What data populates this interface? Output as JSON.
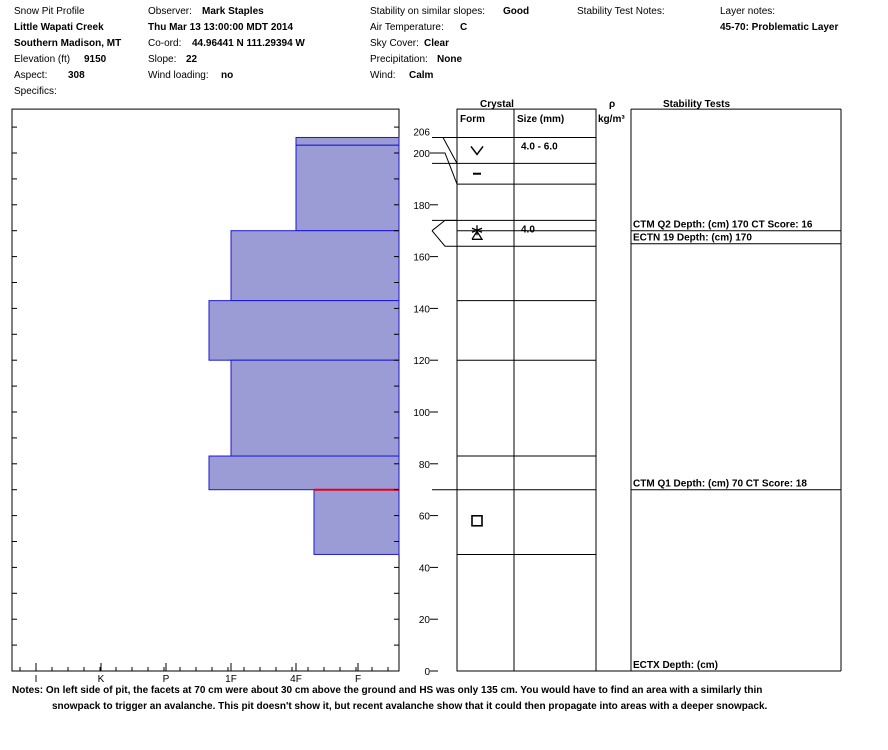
{
  "header": {
    "title": "Snow Pit Profile",
    "location1": "Little Wapati Creek",
    "location2": "Southern Madison, MT",
    "elevation_label": "Elevation (ft)",
    "elevation_value": "9150",
    "aspect_label": "Aspect:",
    "aspect_value": "308",
    "specifics_label": "Specifics:",
    "observer_label": "Observer:",
    "observer_value": "Mark Staples",
    "datetime": "Thu Mar 13 13:00:00 MDT 2014",
    "coord_label": "Co-ord:",
    "coord_value": "44.96441 N 111.29394 W",
    "slope_label": "Slope:",
    "slope_value": "22",
    "wind_loading_label": "Wind loading:",
    "wind_loading_value": "no",
    "stability_label": "Stability on similar slopes:",
    "stability_value": "Good",
    "air_temp_label": "Air Temperature:",
    "air_temp_value": "C",
    "sky_label": "Sky Cover:",
    "sky_value": "Clear",
    "precip_label": "Precipitation:",
    "precip_value": "None",
    "wind_label": "Wind:",
    "wind_value": "Calm",
    "stab_notes_label": "Stability Test Notes:",
    "layer_notes_label": "Layer notes:",
    "layer_notes_value": "45-70: Problematic Layer"
  },
  "columns": {
    "crystal": "Crystal",
    "form": "Form",
    "size": "Size (mm)",
    "rho": "ρ",
    "density_unit": "kg/m³",
    "stability_tests": "Stability Tests"
  },
  "notes": {
    "label": "Notes:",
    "line1": "On left side of pit, the facets at 70 cm were about 30 cm above the ground and HS was only 135 cm. You would have to find an area with a similarly thin",
    "line2": "snowpack to trigger an avalanche. This pit doesn't show it, but recent avalanche show that it could then propagate into areas with a deeper snowpack."
  },
  "chart_data": {
    "type": "bar",
    "hardness_ticks": [
      "I",
      "K",
      "P",
      "1F",
      "4F",
      "F"
    ],
    "height_ticks": [
      0,
      20,
      40,
      60,
      80,
      100,
      120,
      140,
      160,
      180,
      200
    ],
    "top_label": "206",
    "ylim": [
      0,
      210
    ],
    "layers": [
      {
        "top": 206,
        "bottom": 203,
        "hardness": "4F"
      },
      {
        "top": 203,
        "bottom": 170,
        "hardness": "4F"
      },
      {
        "top": 170,
        "bottom": 143,
        "hardness": "1F"
      },
      {
        "top": 143,
        "bottom": 120,
        "hardness": "1F+"
      },
      {
        "top": 120,
        "bottom": 83,
        "hardness": "1F"
      },
      {
        "top": 83,
        "bottom": 70,
        "hardness": "1F+"
      },
      {
        "top": 70,
        "bottom": 45,
        "hardness": "4F-"
      }
    ],
    "weak_layer": 70,
    "grain_layers": [
      {
        "top": 206,
        "bottom": 196,
        "form": "surface-hoar",
        "size": "4.0 - 6.0"
      },
      {
        "top": 196,
        "bottom": 188,
        "form": "faceted-rounded",
        "size": ""
      },
      {
        "top": 174,
        "bottom": 164,
        "form": "depth-hoar-faceted",
        "size": "4.0"
      },
      {
        "top": 70,
        "bottom": 45,
        "form": "faceted",
        "size": ""
      }
    ],
    "interface_lines": [
      206,
      196,
      188,
      174,
      170,
      164,
      143,
      120,
      83,
      70,
      45
    ],
    "stability_tests": [
      {
        "depth": 170,
        "text": "CTM Q2 Depth: (cm) 170 CT Score: 16"
      },
      {
        "depth": 170,
        "text": "ECTN 19  Depth: (cm) 170",
        "below": true
      },
      {
        "depth": 70,
        "text": "CTM Q1 Depth: (cm) 70 CT Score: 18"
      },
      {
        "depth": 0,
        "text": "ECTX   Depth: (cm)"
      }
    ],
    "colors": {
      "layer_fill": "#9b9bd6",
      "layer_stroke": "#1a1ad0",
      "weak": "#e8001c"
    }
  }
}
